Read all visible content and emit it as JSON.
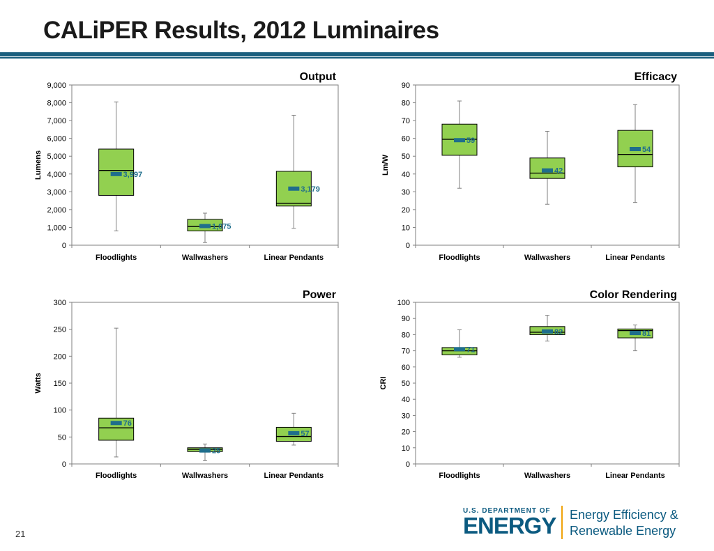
{
  "slide": {
    "title": "CALiPER Results, 2012 Luminaires",
    "page_number": "21"
  },
  "logo": {
    "department": "U.S. DEPARTMENT OF",
    "energy": "ENERGY",
    "office_line1": "Energy Efficiency &",
    "office_line2": "Renewable Energy"
  },
  "colors": {
    "box_fill": "#92d050",
    "mean_marker": "#1f6e8c",
    "mean_label": "#1f6e8c",
    "title_bar": "#1b5f7e"
  },
  "chart_data": [
    {
      "type": "box",
      "title": "Output",
      "ylabel": "Lumens",
      "ylim": [
        0,
        9000
      ],
      "yticks": [
        0,
        1000,
        2000,
        3000,
        4000,
        5000,
        6000,
        7000,
        8000,
        9000
      ],
      "ytick_labels": [
        "0",
        "1,000",
        "2,000",
        "3,000",
        "4,000",
        "5,000",
        "6,000",
        "7,000",
        "8,000",
        "9,000"
      ],
      "categories": [
        "Floodlights",
        "Wallwashers",
        "Linear Pendants"
      ],
      "boxes": [
        {
          "min": 800,
          "q1": 2800,
          "median": 4200,
          "q3": 5400,
          "max": 8050,
          "mean": 3997,
          "mean_label": "3,997"
        },
        {
          "min": 150,
          "q1": 800,
          "median": 1050,
          "q3": 1450,
          "max": 1800,
          "mean": 1075,
          "mean_label": "1,075"
        },
        {
          "min": 950,
          "q1": 2200,
          "median": 2350,
          "q3": 4150,
          "max": 7300,
          "mean": 3179,
          "mean_label": "3,179"
        }
      ]
    },
    {
      "type": "box",
      "title": "Efficacy",
      "ylabel": "Lm/W",
      "ylim": [
        0,
        90
      ],
      "yticks": [
        0,
        10,
        20,
        30,
        40,
        50,
        60,
        70,
        80,
        90
      ],
      "ytick_labels": [
        "0",
        "10",
        "20",
        "30",
        "40",
        "50",
        "60",
        "70",
        "80",
        "90"
      ],
      "categories": [
        "Floodlights",
        "Wallwashers",
        "Linear Pendants"
      ],
      "boxes": [
        {
          "min": 32,
          "q1": 50.5,
          "median": 59.5,
          "q3": 68,
          "max": 81,
          "mean": 59,
          "mean_label": "59"
        },
        {
          "min": 23,
          "q1": 37.5,
          "median": 40.5,
          "q3": 49,
          "max": 64,
          "mean": 42,
          "mean_label": "42"
        },
        {
          "min": 24,
          "q1": 44,
          "median": 51,
          "q3": 64.5,
          "max": 79,
          "mean": 54,
          "mean_label": "54"
        }
      ]
    },
    {
      "type": "box",
      "title": "Power",
      "ylabel": "Watts",
      "ylim": [
        0,
        300
      ],
      "yticks": [
        0,
        50,
        100,
        150,
        200,
        250,
        300
      ],
      "ytick_labels": [
        "0",
        "50",
        "100",
        "150",
        "200",
        "250",
        "300"
      ],
      "categories": [
        "Floodlights",
        "Wallwashers",
        "Linear Pendants"
      ],
      "boxes": [
        {
          "min": 13,
          "q1": 44,
          "median": 67,
          "q3": 85,
          "max": 252,
          "mean": 76,
          "mean_label": "76"
        },
        {
          "min": 6,
          "q1": 23,
          "median": 27,
          "q3": 30,
          "max": 37,
          "mean": 25,
          "mean_label": "25"
        },
        {
          "min": 35,
          "q1": 42,
          "median": 51,
          "q3": 68,
          "max": 94,
          "mean": 57,
          "mean_label": "57"
        }
      ]
    },
    {
      "type": "box",
      "title": "Color Rendering",
      "ylabel": "CRI",
      "ylim": [
        0,
        100
      ],
      "yticks": [
        0,
        10,
        20,
        30,
        40,
        50,
        60,
        70,
        80,
        90,
        100
      ],
      "ytick_labels": [
        "0",
        "10",
        "20",
        "30",
        "40",
        "50",
        "60",
        "70",
        "80",
        "90",
        "100"
      ],
      "categories": [
        "Floodlights",
        "Wallwashers",
        "Linear Pendants"
      ],
      "boxes": [
        {
          "min": 66,
          "q1": 67.5,
          "median": 70,
          "q3": 72,
          "max": 83,
          "mean": 71,
          "mean_label": "71"
        },
        {
          "min": 76,
          "q1": 80,
          "median": 81.5,
          "q3": 85,
          "max": 92,
          "mean": 82,
          "mean_label": "82"
        },
        {
          "min": 70,
          "q1": 78,
          "median": 82.5,
          "q3": 83.5,
          "max": 86,
          "mean": 81,
          "mean_label": "81"
        }
      ]
    }
  ]
}
